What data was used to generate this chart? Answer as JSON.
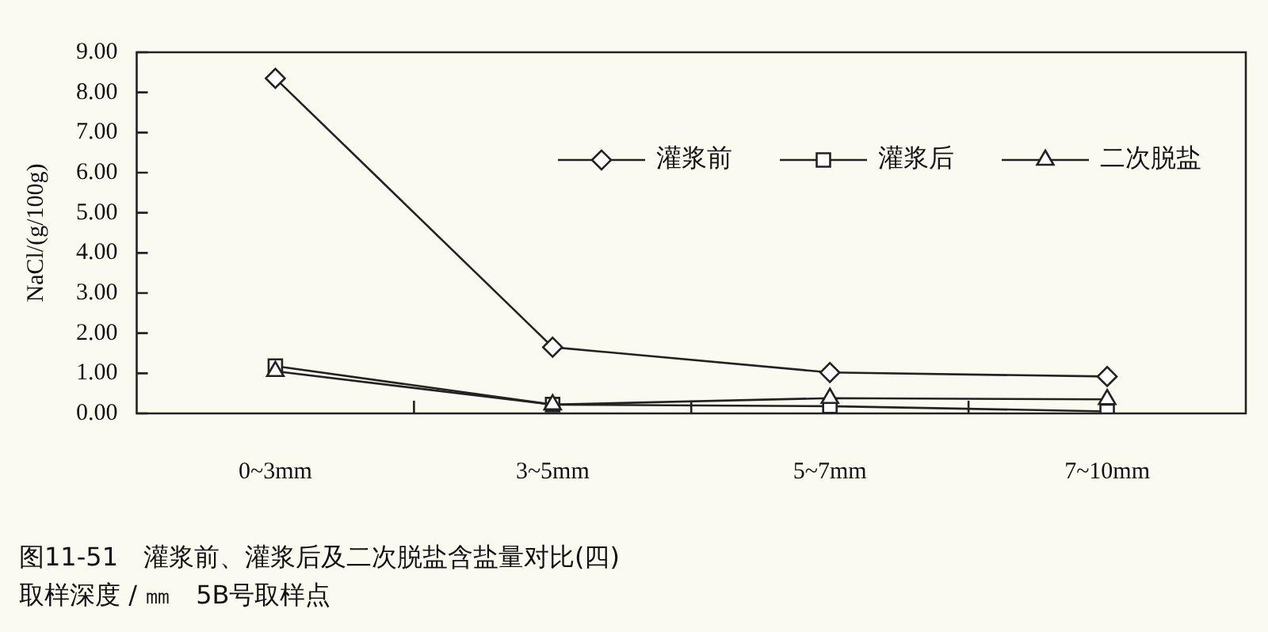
{
  "chart_data": {
    "type": "line",
    "title": "图11-51　灌浆前、灌浆后及二次脱盐含盐量对比(四)",
    "subtitle": "取样深度 / ㎜　5B号取样点",
    "ylabel": "NaCl/(g/100g)",
    "categories": [
      "0~3mm",
      "3~5mm",
      "5~7mm",
      "7~10mm"
    ],
    "series": [
      {
        "name": "灌浆前",
        "color": "#222222",
        "marker": "diamond",
        "values": [
          8.35,
          1.65,
          1.02,
          0.92
        ]
      },
      {
        "name": "灌浆后",
        "color": "#222222",
        "marker": "square",
        "values": [
          1.18,
          0.22,
          0.18,
          0.05
        ]
      },
      {
        "name": "二次脱盐",
        "color": "#222222",
        "marker": "triangle",
        "values": [
          1.05,
          0.22,
          0.38,
          0.35
        ]
      }
    ],
    "ylim": [
      0,
      9
    ],
    "yticks": [
      {
        "value": 0,
        "label": "0.00"
      },
      {
        "value": 1,
        "label": "1.00"
      },
      {
        "value": 2,
        "label": "2.00"
      },
      {
        "value": 3,
        "label": "3.00"
      },
      {
        "value": 4,
        "label": "4.00"
      },
      {
        "value": 5,
        "label": "5.00"
      },
      {
        "value": 6,
        "label": "6.00"
      },
      {
        "value": 7,
        "label": "7.00"
      },
      {
        "value": 8,
        "label": "8.00"
      },
      {
        "value": 9,
        "label": "9.00"
      }
    ],
    "grid": false,
    "legend": "top right",
    "line_style": "solid"
  }
}
